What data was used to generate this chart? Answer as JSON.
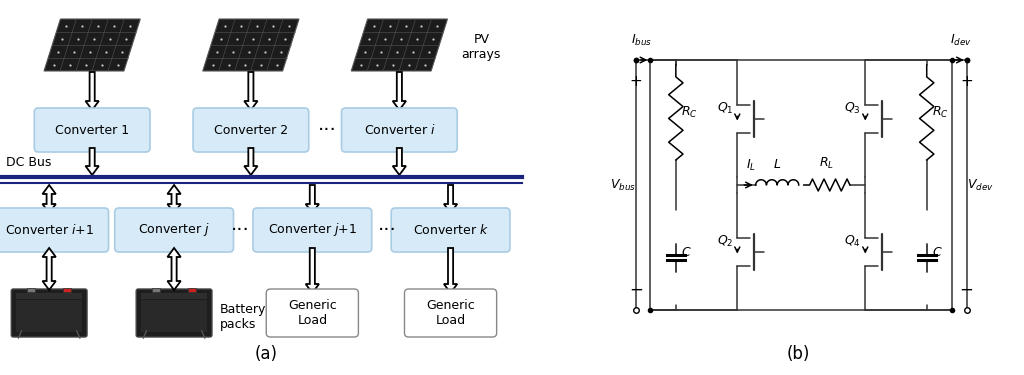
{
  "fig_width": 10.24,
  "fig_height": 3.75,
  "bg_color": "#ffffff",
  "box_fill": "#d6eaf8",
  "box_edge": "#a9cce3",
  "dc_bus_color": "#1a237e",
  "text_color": "#000000",
  "label_a": "(a)",
  "label_b": "(b)",
  "dc_bus_label": "DC Bus",
  "pv_label": "PV\narrays",
  "battery_label": "Battery\npacks"
}
